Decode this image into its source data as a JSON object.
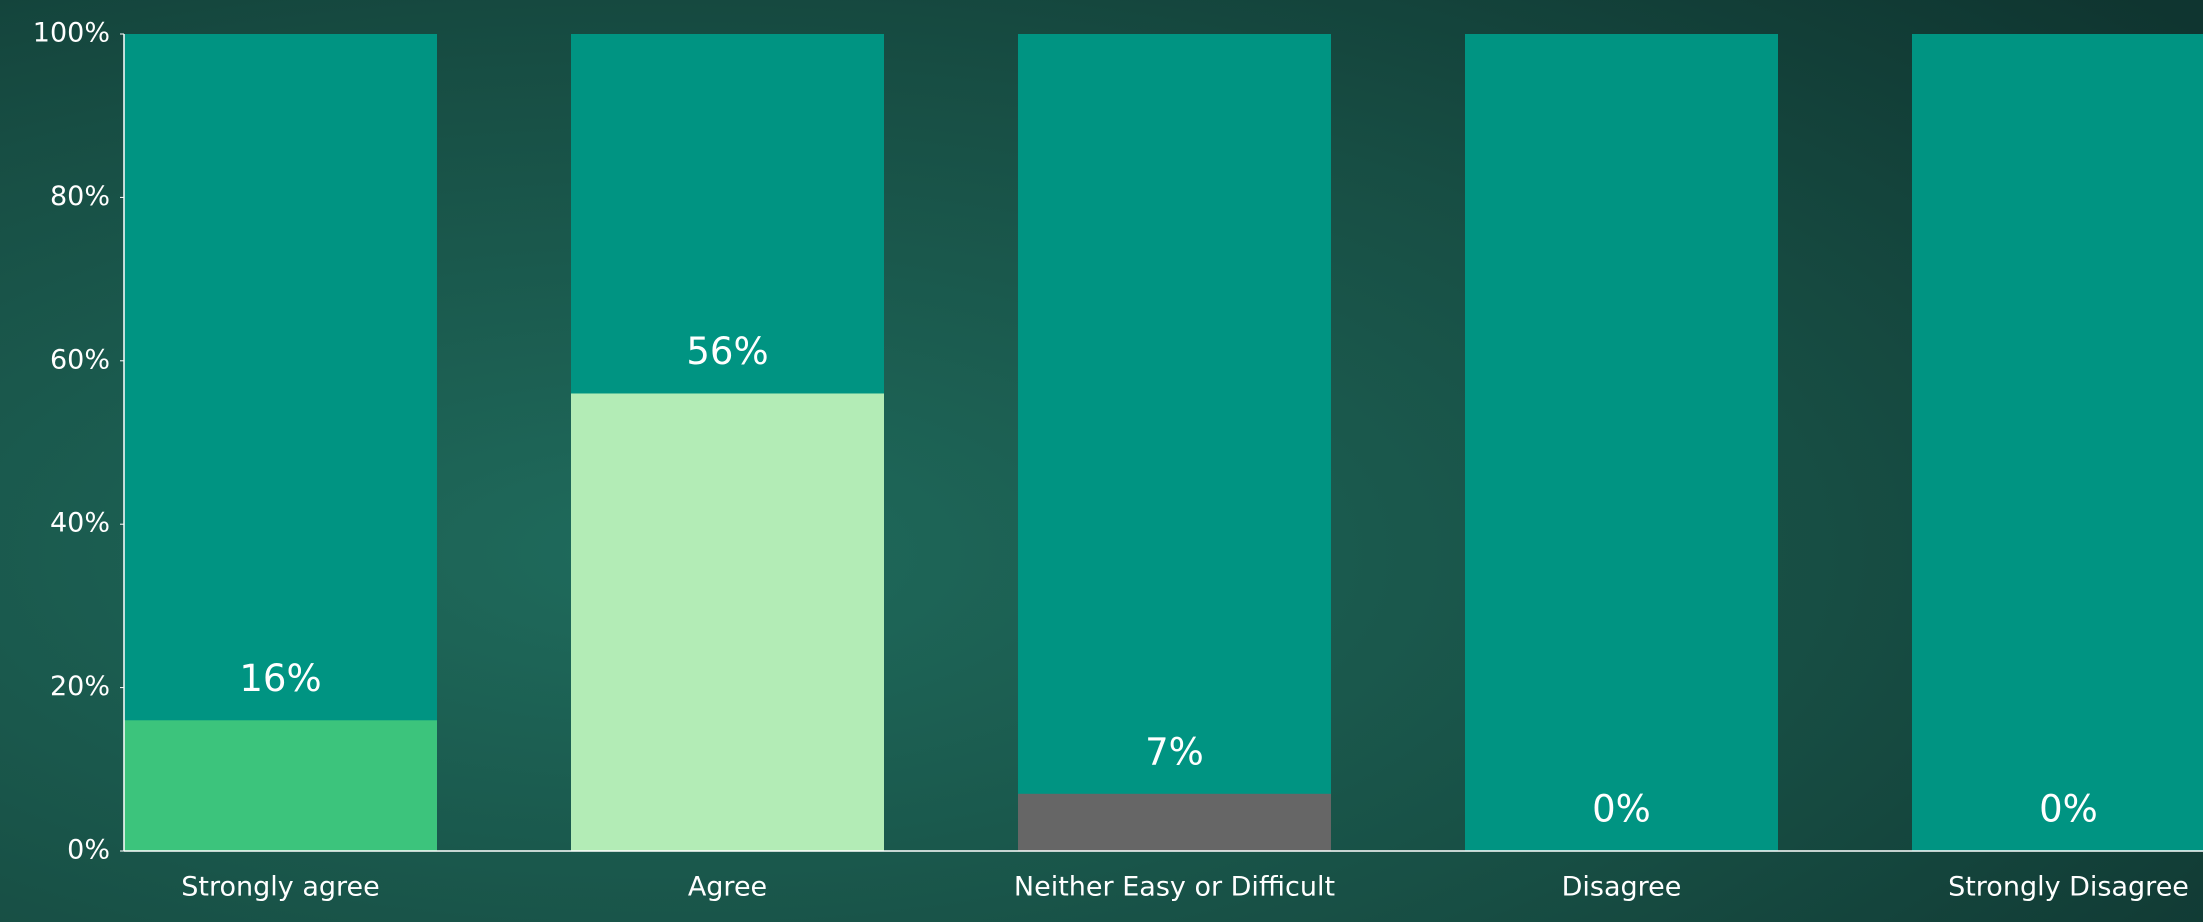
{
  "chart_data": {
    "type": "bar",
    "categories": [
      "Strongly agree",
      "Agree",
      "Neither Easy or Difficult",
      "Disagree",
      "Strongly Disagree"
    ],
    "values": [
      16,
      56,
      7,
      0,
      0
    ],
    "value_labels": [
      "16%",
      "56%",
      "7%",
      "0%",
      "0%"
    ],
    "colors": [
      "#3cc47c",
      "#b3ecb6",
      "#666666",
      "#3cc47c",
      "#3cc47c"
    ],
    "track_color": "#009482",
    "ylim": [
      0,
      100
    ],
    "yticks": [
      {
        "value": 0,
        "label": "0%"
      },
      {
        "value": 20,
        "label": "20%"
      },
      {
        "value": 40,
        "label": "40%"
      },
      {
        "value": 60,
        "label": "60%"
      },
      {
        "value": 80,
        "label": "80%"
      },
      {
        "value": 100,
        "label": "100%"
      }
    ]
  }
}
